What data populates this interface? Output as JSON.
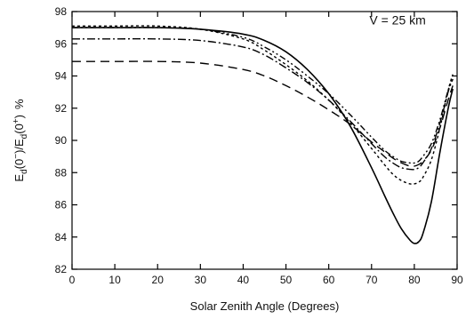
{
  "chart_data": {
    "type": "line",
    "title": "",
    "annotation": "V = 25 km",
    "xlabel": "Solar Zenith Angle (Degrees)",
    "ylabel_main": "E",
    "ylabel_sub1": "d",
    "ylabel_arg1": "(0",
    "ylabel_sup1": "−",
    "ylabel_mid": ")/E",
    "ylabel_sub2": "d",
    "ylabel_arg2": "(0",
    "ylabel_sup2": "+",
    "ylabel_end": ")",
    "ylabel_unit": "%",
    "xlim": [
      0,
      90
    ],
    "ylim": [
      82,
      98
    ],
    "xticks": [
      0,
      10,
      20,
      30,
      40,
      50,
      60,
      70,
      80,
      90
    ],
    "yticks": [
      82,
      84,
      86,
      88,
      90,
      92,
      94,
      96,
      98
    ],
    "grid": false,
    "series": [
      {
        "style": "solid",
        "x": [
          0,
          10,
          20,
          30,
          40,
          45,
          50,
          55,
          60,
          65,
          70,
          73,
          75,
          77,
          79,
          80,
          81,
          82,
          84,
          86,
          88,
          89
        ],
        "y": [
          97.0,
          97.0,
          97.0,
          96.9,
          96.6,
          96.2,
          95.5,
          94.4,
          92.9,
          90.9,
          88.3,
          86.6,
          85.5,
          84.5,
          83.8,
          83.6,
          83.7,
          84.2,
          86.2,
          89.3,
          92.1,
          93.2
        ]
      },
      {
        "style": "dotted",
        "x": [
          0,
          10,
          20,
          30,
          40,
          45,
          50,
          55,
          60,
          65,
          70,
          73,
          75,
          77,
          79,
          80,
          81,
          82,
          84,
          86,
          88,
          89
        ],
        "y": [
          97.1,
          97.1,
          97.1,
          96.9,
          96.3,
          95.6,
          94.7,
          93.7,
          92.5,
          91.1,
          89.5,
          88.5,
          87.9,
          87.5,
          87.3,
          87.3,
          87.4,
          87.7,
          88.8,
          90.8,
          93.2,
          94.1
        ]
      },
      {
        "style": "dash-dot",
        "x": [
          0,
          10,
          20,
          30,
          40,
          45,
          50,
          55,
          60,
          65,
          70,
          73,
          75,
          77,
          79,
          80,
          81,
          82,
          84,
          86,
          88,
          89
        ],
        "y": [
          96.3,
          96.3,
          96.3,
          96.2,
          95.8,
          95.3,
          94.5,
          93.6,
          92.5,
          91.2,
          89.8,
          89.0,
          88.6,
          88.3,
          88.2,
          88.2,
          88.3,
          88.6,
          89.5,
          91.1,
          93.1,
          93.8
        ]
      },
      {
        "style": "dash-dot-dot",
        "x": [
          0,
          10,
          20,
          30,
          40,
          45,
          50,
          55,
          60,
          65,
          70,
          73,
          75,
          77,
          79,
          80,
          81,
          82,
          84,
          86,
          88,
          89
        ],
        "y": [
          97.0,
          97.0,
          97.0,
          96.9,
          96.4,
          95.8,
          95.0,
          94.0,
          92.9,
          91.6,
          90.2,
          89.4,
          89.0,
          88.7,
          88.6,
          88.6,
          88.7,
          89.0,
          89.8,
          91.3,
          93.2,
          93.8
        ]
      },
      {
        "style": "dashed",
        "x": [
          0,
          10,
          20,
          30,
          40,
          45,
          50,
          55,
          60,
          65,
          70,
          73,
          75,
          77,
          79,
          80,
          81,
          82,
          84,
          86,
          88,
          89
        ],
        "y": [
          94.9,
          94.9,
          94.9,
          94.8,
          94.4,
          94.0,
          93.4,
          92.7,
          91.9,
          91.0,
          89.9,
          89.3,
          88.9,
          88.6,
          88.4,
          88.4,
          88.5,
          88.7,
          89.4,
          90.8,
          92.6,
          93.4
        ]
      }
    ]
  }
}
